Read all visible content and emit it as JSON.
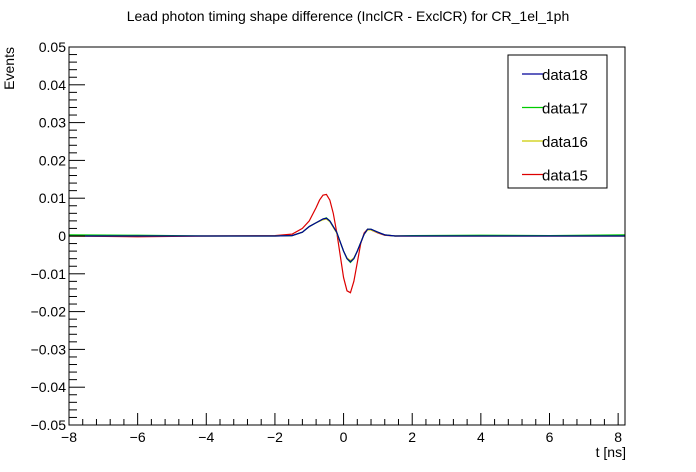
{
  "chart_data": {
    "type": "line",
    "title": "Lead photon timing shape difference (InclCR - ExclCR) for CR_1el_1ph",
    "xlabel": "t [ns]",
    "ylabel": "Events",
    "xlim": [
      -8,
      8.2
    ],
    "ylim": [
      -0.05,
      0.05
    ],
    "x_ticks": [
      -8,
      -6,
      -4,
      -2,
      0,
      2,
      4,
      6,
      8
    ],
    "x_tick_labels": [
      "−8",
      "−6",
      "−4",
      "−2",
      "0",
      "2",
      "4",
      "6",
      "8"
    ],
    "y_ticks": [
      -0.05,
      -0.04,
      -0.03,
      -0.02,
      -0.01,
      0,
      0.01,
      0.02,
      0.03,
      0.04,
      0.05
    ],
    "y_tick_labels": [
      "−0.05",
      "−0.04",
      "−0.03",
      "−0.02",
      "−0.01",
      "0",
      "0.01",
      "0.02",
      "0.03",
      "0.04",
      "0.05"
    ],
    "grid": false,
    "legend_position": "top-right",
    "series": [
      {
        "name": "data18",
        "color": "#000099",
        "x": [
          -8,
          -6,
          -4,
          -2,
          -1.5,
          -1.2,
          -1.0,
          -0.8,
          -0.6,
          -0.5,
          -0.4,
          -0.2,
          0,
          0.1,
          0.2,
          0.3,
          0.4,
          0.6,
          0.7,
          0.8,
          1.0,
          1.2,
          1.5,
          2,
          4,
          6,
          8.2
        ],
        "y": [
          0,
          0,
          0,
          0,
          0.0001,
          0.001,
          0.0025,
          0.0035,
          0.0045,
          0.0047,
          0.004,
          0.001,
          -0.004,
          -0.006,
          -0.0068,
          -0.006,
          -0.004,
          0.0005,
          0.0018,
          0.0018,
          0.001,
          0.0003,
          0,
          0,
          0,
          0,
          0
        ]
      },
      {
        "name": "data17",
        "color": "#00cc00",
        "x": [
          -8,
          -6,
          -4,
          -2,
          -1.5,
          -1.2,
          -1.0,
          -0.8,
          -0.6,
          -0.5,
          -0.4,
          -0.2,
          0,
          0.1,
          0.2,
          0.3,
          0.4,
          0.6,
          0.7,
          0.8,
          1.0,
          1.2,
          1.5,
          2,
          4,
          6,
          8.2
        ],
        "y": [
          0.0003,
          0.0002,
          0,
          0,
          0.0001,
          0.001,
          0.0025,
          0.0035,
          0.0045,
          0.0048,
          0.004,
          0.001,
          -0.004,
          -0.006,
          -0.007,
          -0.006,
          -0.004,
          0.0005,
          0.0018,
          0.0018,
          0.001,
          0.0003,
          0,
          0.0001,
          0.0002,
          0.0001,
          0.0003
        ]
      },
      {
        "name": "data16",
        "color": "#cccc00",
        "x": [
          -8,
          -6,
          -4,
          -2,
          -1.5,
          -1.2,
          -1.0,
          -0.8,
          -0.6,
          -0.5,
          -0.4,
          -0.2,
          0,
          0.1,
          0.2,
          0.3,
          0.4,
          0.6,
          0.7,
          0.8,
          1.0,
          1.2,
          1.5,
          2,
          4,
          6,
          8.2
        ],
        "y": [
          0,
          0,
          0,
          0,
          0.0001,
          0.001,
          0.0025,
          0.0035,
          0.0043,
          0.0045,
          0.0038,
          0.0008,
          -0.004,
          -0.0058,
          -0.0065,
          -0.0058,
          -0.004,
          0.0005,
          0.0016,
          0.0016,
          0.0009,
          0.0003,
          0,
          0,
          0,
          0,
          0
        ]
      },
      {
        "name": "data15",
        "color": "#dd0000",
        "x": [
          -8,
          -6,
          -4,
          -2,
          -1.5,
          -1.2,
          -1.0,
          -0.8,
          -0.7,
          -0.6,
          -0.5,
          -0.4,
          -0.3,
          -0.2,
          -0.1,
          0,
          0.1,
          0.2,
          0.3,
          0.4,
          0.5,
          0.6,
          0.7,
          0.8,
          1.0,
          1.2,
          1.5,
          2,
          4,
          6,
          8.2
        ],
        "y": [
          0,
          -0.0002,
          0,
          0.0001,
          0.0005,
          0.002,
          0.004,
          0.0075,
          0.0095,
          0.0108,
          0.011,
          0.0095,
          0.006,
          0.001,
          -0.005,
          -0.011,
          -0.0145,
          -0.015,
          -0.012,
          -0.007,
          -0.002,
          0.0008,
          0.0018,
          0.0016,
          0.0008,
          0.0002,
          0,
          0,
          0,
          0,
          0
        ]
      }
    ]
  }
}
